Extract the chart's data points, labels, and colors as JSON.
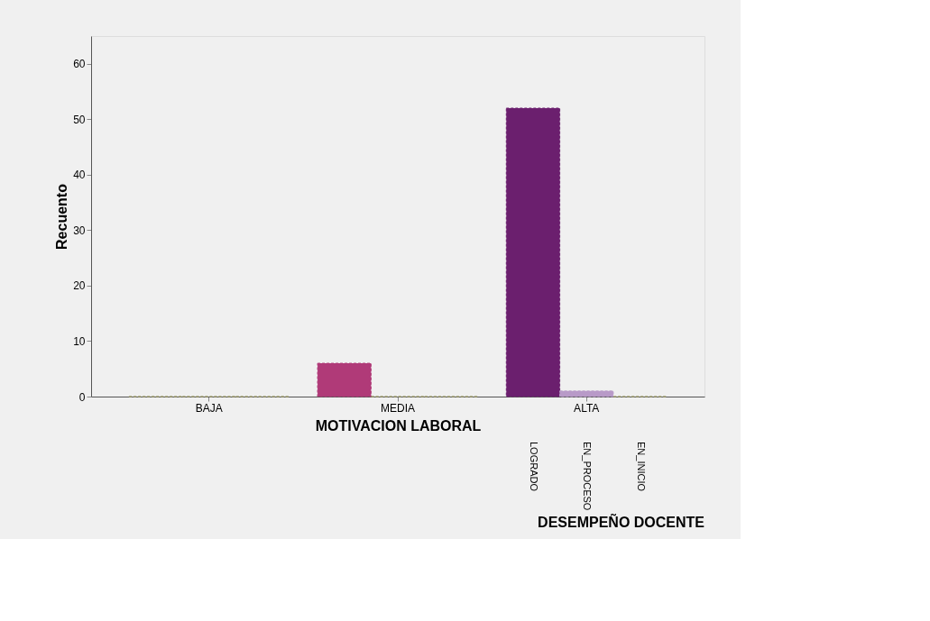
{
  "chart_data": {
    "type": "bar",
    "xlabel": "MOTIVACION LABORAL",
    "ylabel": "Recuento",
    "categories": [
      "BAJA",
      "MEDIA",
      "ALTA"
    ],
    "series": [
      {
        "name": "LOGRADO",
        "values": [
          0,
          6,
          52
        ],
        "colors": [
          "#9c9a6a",
          "#b03a78",
          "#6b1f6e"
        ]
      },
      {
        "name": "EN_PROCESO",
        "values": [
          0,
          0,
          1
        ],
        "colors": [
          "#9c9a6a",
          "#9c9a6a",
          "#b89ac8"
        ]
      },
      {
        "name": "EN_INICIO",
        "values": [
          0,
          0,
          0
        ],
        "colors": [
          "#9c9a6a",
          "#9c9a6a",
          "#9c9a6a"
        ]
      }
    ],
    "annotations": [
      "DESEMPEÑO DOCENTE"
    ],
    "ylim": [
      0,
      65
    ],
    "yticks": [
      0,
      10,
      20,
      30,
      40,
      50,
      60
    ],
    "grid": false
  }
}
